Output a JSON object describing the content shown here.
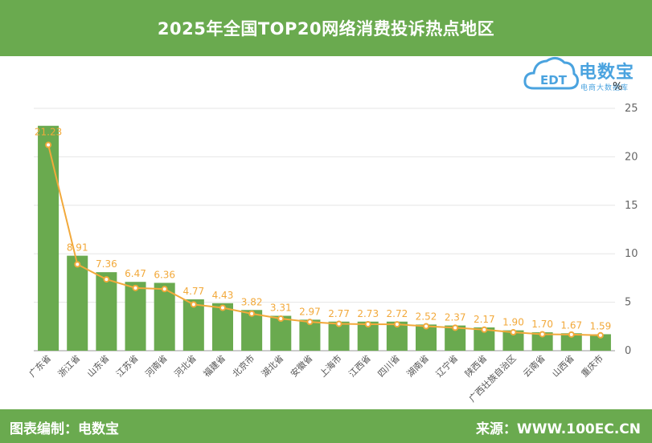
{
  "header": {
    "title": "2025年全国TOP20网络消费投诉热点地区"
  },
  "logo": {
    "brand": "电数宝",
    "sub": "电商大数据库",
    "mark_text": "EDT"
  },
  "unit": "%",
  "footer": {
    "left": "图表编制：电数宝",
    "right": "来源：WWW.100EC.CN"
  },
  "colors": {
    "bar": "#6aaa4f",
    "line": "#f2a93b",
    "header": "#6aaa4f",
    "logo": "#4aa3df"
  },
  "chart_data": {
    "type": "bar",
    "categories": [
      "广东省",
      "浙江省",
      "山东省",
      "江苏省",
      "河南省",
      "河北省",
      "福建省",
      "北京市",
      "湖北省",
      "安徽省",
      "上海市",
      "江西省",
      "四川省",
      "湖南省",
      "辽宁省",
      "陕西省",
      "广西壮族自治区",
      "云南省",
      "山西省",
      "重庆市"
    ],
    "series": [
      {
        "type": "bar",
        "values": [
          23.2,
          9.8,
          8.1,
          7.1,
          7.0,
          5.3,
          4.9,
          4.2,
          3.6,
          3.2,
          3.0,
          3.0,
          3.0,
          2.7,
          2.6,
          2.4,
          2.1,
          1.9,
          1.8,
          1.7
        ]
      },
      {
        "type": "line",
        "values": [
          21.23,
          8.91,
          7.36,
          6.47,
          6.36,
          4.77,
          4.43,
          3.82,
          3.31,
          2.97,
          2.77,
          2.73,
          2.72,
          2.52,
          2.37,
          2.17,
          1.9,
          1.7,
          1.67,
          1.59
        ]
      }
    ],
    "data_labels": [
      "21.23",
      "8.91",
      "7.36",
      "6.47",
      "6.36",
      "4.77",
      "4.43",
      "3.82",
      "3.31",
      "2.97",
      "2.77",
      "2.73",
      "2.72",
      "2.52",
      "2.37",
      "2.17",
      "1.90",
      "1.70",
      "1.67",
      "1.59"
    ],
    "y_ticks": [
      "0",
      "5",
      "10",
      "15",
      "20",
      "25"
    ],
    "ylim": [
      0,
      25
    ],
    "y_axis_side": "right",
    "grid": true
  }
}
